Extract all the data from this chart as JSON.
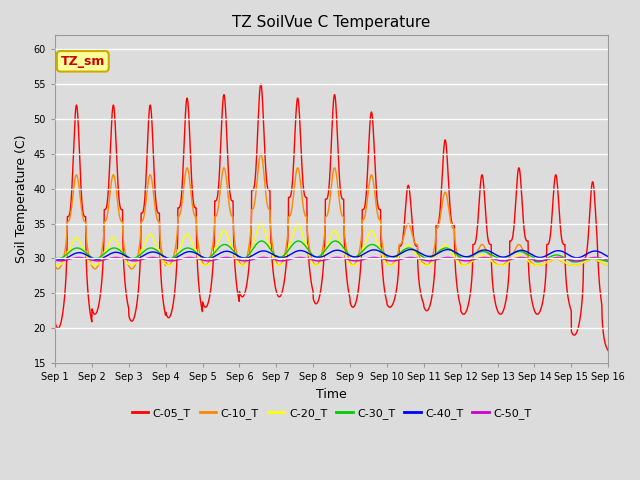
{
  "title": "TZ SoilVue C Temperature",
  "xlabel": "Time",
  "ylabel": "Soil Temperature (C)",
  "ylim": [
    15,
    62
  ],
  "yticks": [
    15,
    20,
    25,
    30,
    35,
    40,
    45,
    50,
    55,
    60
  ],
  "background_color": "#dcdcdc",
  "legend_entries": [
    "C-05_T",
    "C-10_T",
    "C-20_T",
    "C-30_T",
    "C-40_T",
    "C-50_T"
  ],
  "line_colors": [
    "#ff0000",
    "#ff8800",
    "#ffff00",
    "#00cc00",
    "#0000ff",
    "#cc00cc"
  ],
  "annotation_text": "TZ_sm",
  "annotation_color": "#cc0000",
  "annotation_bg": "#ffff99",
  "annotation_border": "#ccaa00",
  "n_points": 3600
}
